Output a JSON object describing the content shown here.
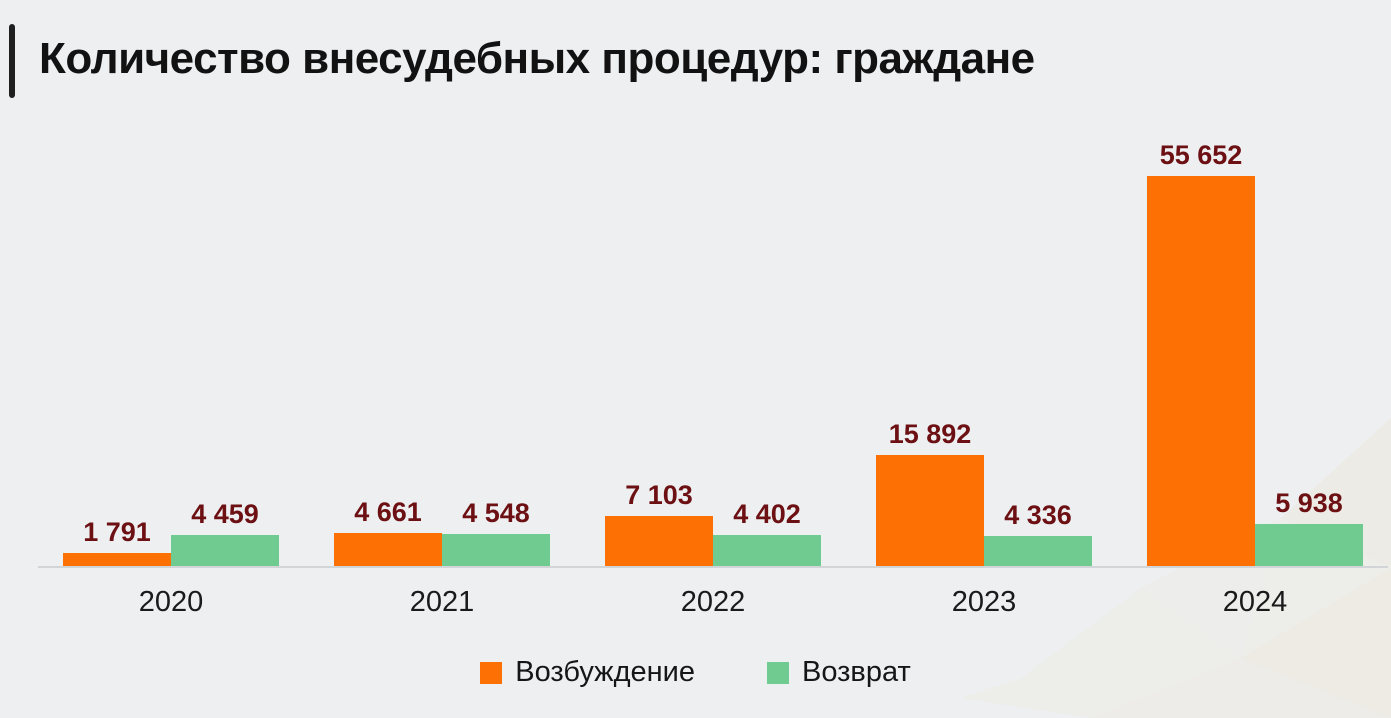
{
  "title": "Количество внесудебных процедур: граждане",
  "chart_data": {
    "type": "bar",
    "title": "Количество внесудебных процедур: граждане",
    "xlabel": "",
    "ylabel": "",
    "categories": [
      "2020",
      "2021",
      "2022",
      "2023",
      "2024"
    ],
    "series": [
      {
        "name": "Возбуждение",
        "color": "#fc7004",
        "values": [
          1791,
          4661,
          7103,
          15892,
          55652
        ],
        "labels": [
          "1 791",
          "4 661",
          "7 103",
          "15 892",
          "55 652"
        ]
      },
      {
        "name": "Возврат",
        "color": "#6fcb90",
        "values": [
          4459,
          4548,
          4402,
          4336,
          5938
        ],
        "labels": [
          "4 459",
          "4 548",
          "4 402",
          "4 336",
          "5 938"
        ]
      }
    ],
    "ylim": [
      0,
      55652
    ],
    "grid": false,
    "legend_position": "bottom",
    "value_label_color": "#6c1013",
    "axis_line_color": "#d2d5d8",
    "background_color": "#edeff1"
  },
  "legend": {
    "items": [
      {
        "label": "Возбуждение",
        "color": "#fc7004"
      },
      {
        "label": "Возврат",
        "color": "#6fcb90"
      }
    ]
  }
}
